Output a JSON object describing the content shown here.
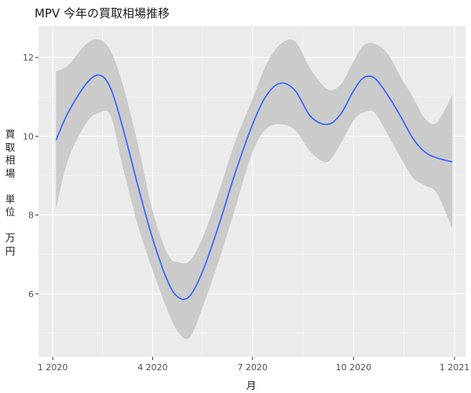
{
  "chart_data": {
    "type": "line",
    "title": "MPV 今年の買取相場推移",
    "xlabel": "月",
    "ylabel": "買取相場\n\n単位\n\n万円",
    "x_ticks": [
      {
        "label": "1 2020",
        "date": "2020-01-01"
      },
      {
        "label": "4 2020",
        "date": "2020-04-01"
      },
      {
        "label": "7 2020",
        "date": "2020-07-01"
      },
      {
        "label": "10 2020",
        "date": "2020-10-01"
      },
      {
        "label": "1 2021",
        "date": "2021-01-01"
      }
    ],
    "y_ticks": [
      6,
      8,
      10,
      12
    ],
    "xlim": [
      "2019-12-19",
      "2021-01-11"
    ],
    "ylim": [
      4.4,
      12.8
    ],
    "grid": true,
    "smooth_series": {
      "x": [
        "2020-01-04",
        "2020-01-15",
        "2020-02-01",
        "2020-02-13",
        "2020-02-23",
        "2020-03-05",
        "2020-03-19",
        "2020-04-01",
        "2020-04-15",
        "2020-04-25",
        "2020-05-05",
        "2020-05-17",
        "2020-06-01",
        "2020-06-15",
        "2020-07-01",
        "2020-07-14",
        "2020-07-27",
        "2020-08-09",
        "2020-08-23",
        "2020-09-07",
        "2020-09-19",
        "2020-10-01",
        "2020-10-10",
        "2020-10-20",
        "2020-11-01",
        "2020-11-13",
        "2020-11-24",
        "2020-12-05",
        "2020-12-16",
        "2020-12-30"
      ],
      "y": [
        9.9,
        10.6,
        11.35,
        11.55,
        11.2,
        10.2,
        8.7,
        7.4,
        6.3,
        5.9,
        5.95,
        6.6,
        7.8,
        9.05,
        10.3,
        11.05,
        11.35,
        11.15,
        10.5,
        10.3,
        10.55,
        11.15,
        11.48,
        11.48,
        11.05,
        10.5,
        9.95,
        9.6,
        9.45,
        9.35
      ],
      "upper": [
        11.65,
        11.8,
        12.35,
        12.45,
        12.15,
        11.3,
        9.75,
        8.1,
        7.0,
        6.8,
        6.85,
        7.45,
        8.65,
        9.85,
        10.95,
        11.85,
        12.35,
        12.4,
        11.7,
        11.2,
        11.3,
        11.9,
        12.3,
        12.35,
        12.1,
        11.5,
        11.0,
        10.45,
        10.35,
        11.05
      ],
      "lower": [
        8.15,
        9.4,
        10.35,
        10.6,
        10.5,
        9.2,
        7.7,
        6.6,
        5.55,
        5.0,
        4.9,
        5.7,
        6.9,
        8.15,
        9.6,
        10.2,
        10.3,
        10.15,
        9.6,
        9.35,
        9.8,
        10.4,
        10.6,
        10.6,
        10.05,
        9.45,
        8.95,
        8.75,
        8.55,
        7.65
      ]
    },
    "colors": {
      "panel": "#ebebeb",
      "grid_major": "#ffffff",
      "band": "#cbcbcb",
      "line": "#3366ff",
      "tick_text": "#4d4d4d"
    }
  }
}
